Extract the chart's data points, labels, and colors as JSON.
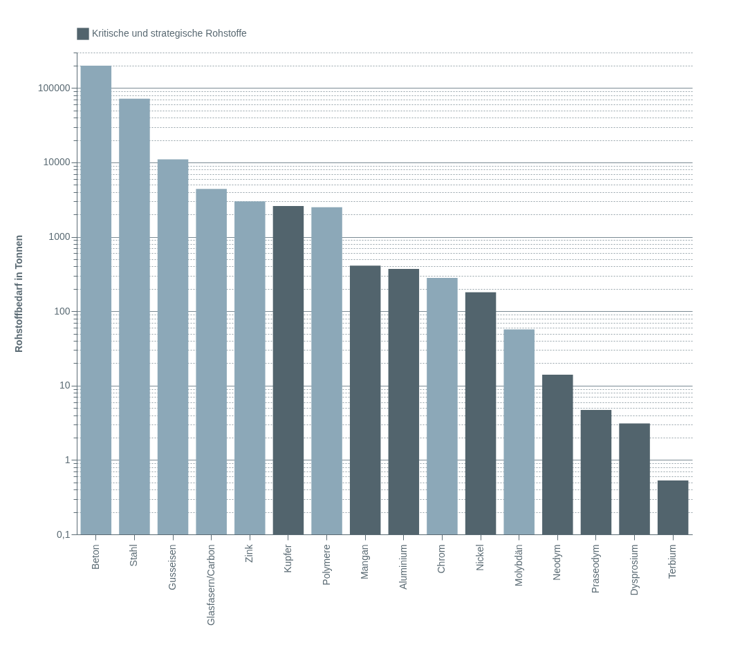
{
  "chart_data": {
    "type": "bar",
    "ylabel": "Rohstoffbedarf in Tonnen",
    "categories": [
      "Beton",
      "Stahl",
      "Gusseisen",
      "Glasfasern/Carbon",
      "Zink",
      "Kupfer",
      "Polymere",
      "Mangan",
      "Aluminium",
      "Chrom",
      "Nickel",
      "Molybdän",
      "Neodym",
      "Praseodym",
      "Dysprosium",
      "Terbium"
    ],
    "series": [
      {
        "color": "#8ca8b8",
        "values": [
          200000,
          72000,
          11000,
          4400,
          3000,
          null,
          2500,
          null,
          null,
          280,
          null,
          57,
          null,
          null,
          null,
          null
        ]
      },
      {
        "name": "Kritische und strategische Rohstoffe",
        "color": "#52646d",
        "values": [
          null,
          null,
          null,
          null,
          null,
          2600,
          null,
          410,
          370,
          null,
          180,
          null,
          14,
          4.7,
          3.1,
          0.53
        ]
      }
    ],
    "log": true,
    "ylim": [
      0.1,
      300000
    ],
    "yticks": [
      {
        "value": 0.1,
        "label": "0,1"
      },
      1,
      10,
      100,
      1000,
      10000,
      100000
    ],
    "grid": "y",
    "legend": "top"
  }
}
